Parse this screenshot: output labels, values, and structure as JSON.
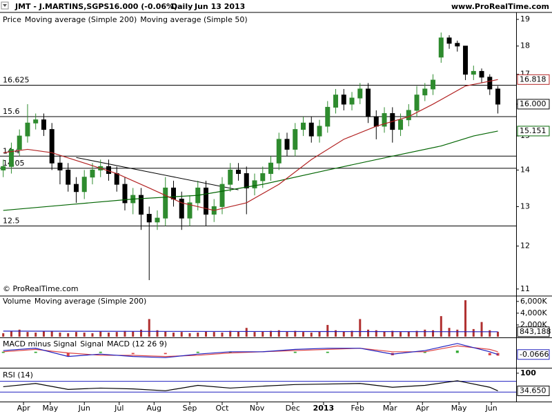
{
  "chart_data": [
    {
      "type": "candlestick",
      "title": "JMT - J.MARTINS,SGPS",
      "subtitle": "16.000 (-0.06%)",
      "period": "Daily",
      "date": "Jun 13 2013",
      "source": "www.ProRealTime.com",
      "copyright": "© ProRealTime.com",
      "legend_label": "Price",
      "log_scale": true,
      "xlim": [
        -0.4,
        63.25
      ],
      "ylim": [
        10.86,
        19.27
      ],
      "yticks": [
        11,
        12,
        13,
        14,
        15,
        16,
        17,
        18,
        19
      ],
      "up_color": "#2e8b2e",
      "down_color": "#000000",
      "open": [
        14.0,
        14.1,
        14.6,
        15.0,
        15.4,
        15.5,
        15.2,
        14.2,
        14.0,
        13.6,
        13.4,
        13.8,
        14.0,
        14.1,
        13.9,
        13.6,
        13.1,
        13.3,
        12.8,
        12.6,
        12.7,
        13.5,
        13.2,
        12.7,
        13.1,
        13.5,
        12.8,
        13.0,
        13.6,
        14.0,
        13.9,
        13.5,
        13.7,
        13.9,
        14.2,
        14.9,
        14.6,
        15.2,
        15.4,
        15.0,
        15.3,
        15.9,
        16.3,
        16.0,
        16.2,
        16.5,
        15.6,
        15.3,
        15.7,
        15.2,
        15.5,
        15.8,
        16.3,
        16.5,
        17.6,
        18.3,
        18.1,
        18.0,
        17.0,
        17.1,
        16.9,
        16.5
      ],
      "high": [
        14.3,
        14.8,
        15.2,
        16.0,
        15.7,
        15.7,
        15.4,
        14.4,
        14.2,
        13.8,
        14.0,
        14.2,
        14.3,
        14.3,
        14.1,
        13.8,
        13.5,
        13.5,
        13.0,
        12.9,
        13.8,
        13.7,
        13.4,
        13.3,
        13.7,
        13.7,
        13.2,
        13.8,
        14.2,
        14.2,
        14.1,
        13.9,
        14.1,
        14.4,
        15.1,
        15.1,
        15.4,
        15.6,
        15.6,
        15.5,
        16.1,
        16.5,
        16.5,
        16.4,
        16.7,
        16.7,
        15.8,
        15.9,
        15.9,
        15.7,
        16.0,
        16.6,
        16.7,
        17.0,
        18.5,
        18.4,
        18.2,
        18.0,
        17.3,
        17.2,
        17.0,
        16.6
      ],
      "low": [
        13.8,
        13.9,
        14.4,
        14.8,
        15.2,
        15.0,
        14.0,
        13.6,
        13.4,
        13.1,
        13.2,
        13.6,
        13.8,
        13.7,
        13.4,
        12.9,
        12.8,
        12.4,
        11.2,
        12.4,
        12.5,
        13.0,
        12.4,
        12.5,
        12.9,
        12.5,
        12.6,
        12.8,
        13.4,
        13.7,
        12.8,
        13.3,
        13.5,
        13.7,
        14.0,
        14.4,
        14.4,
        15.0,
        14.8,
        14.8,
        15.1,
        15.7,
        15.8,
        15.8,
        16.0,
        15.4,
        14.9,
        15.1,
        14.8,
        15.0,
        15.3,
        15.6,
        16.1,
        16.3,
        17.4,
        17.9,
        17.8,
        16.8,
        16.8,
        16.7,
        16.3,
        15.7
      ],
      "close": [
        14.1,
        14.6,
        15.0,
        15.4,
        15.5,
        15.2,
        14.2,
        14.0,
        13.6,
        13.4,
        13.8,
        14.0,
        14.1,
        13.9,
        13.6,
        13.1,
        13.3,
        12.8,
        12.6,
        12.7,
        13.5,
        13.2,
        12.7,
        13.1,
        13.5,
        12.8,
        13.0,
        13.6,
        14.0,
        13.9,
        13.5,
        13.7,
        13.9,
        14.2,
        14.9,
        14.6,
        15.2,
        15.4,
        15.0,
        15.3,
        15.9,
        16.3,
        16.0,
        16.2,
        16.5,
        15.6,
        15.3,
        15.7,
        15.2,
        15.5,
        15.8,
        16.3,
        16.5,
        16.8,
        18.3,
        18.1,
        18.0,
        17.0,
        17.1,
        16.9,
        16.5,
        16.0
      ],
      "last_price": {
        "value": 16.0,
        "label": "16.000"
      },
      "levels": [
        16.625,
        15.6,
        14.4,
        14.05,
        12.5
      ],
      "trendline": {
        "x": [
          9,
          29
        ],
        "values": [
          14.36,
          13.45
        ]
      },
      "series": [
        {
          "name": "Moving average (Simple 200)",
          "color": "#006400",
          "x": [
            0,
            8,
            16,
            24,
            32,
            40,
            48,
            54,
            58,
            61
          ],
          "values": [
            12.9,
            13.05,
            13.2,
            13.3,
            13.6,
            14.0,
            14.4,
            14.7,
            15.0,
            15.151
          ]
        },
        {
          "name": "Moving average (Simple 50)",
          "color": "#b22222",
          "x": [
            0,
            3,
            6,
            10,
            14,
            18,
            22,
            26,
            30,
            34,
            38,
            42,
            46,
            50,
            53,
            57,
            61
          ],
          "values": [
            14.5,
            14.6,
            14.5,
            14.2,
            13.9,
            13.5,
            13.1,
            12.9,
            13.1,
            13.6,
            14.3,
            14.9,
            15.3,
            15.6,
            16.0,
            16.6,
            16.818
          ]
        }
      ]
    },
    {
      "type": "volume",
      "title": "Volume",
      "xlim": [
        -0.4,
        63.25
      ],
      "ylim": [
        0,
        6800
      ],
      "yticks": [
        {
          "value": 6000,
          "label": "6,000K"
        },
        {
          "value": 4000,
          "label": "4,000K"
        },
        {
          "value": 2000,
          "label": "2,000K"
        }
      ],
      "last_value": {
        "value": 843.188,
        "label": "843,188"
      },
      "series": [
        {
          "name": "Volume",
          "color": "#b03030",
          "values": [
            600,
            900,
            1200,
            800,
            700,
            900,
            1000,
            700,
            600,
            800,
            700,
            600,
            900,
            700,
            800,
            1000,
            900,
            1200,
            3000,
            1100,
            900,
            700,
            800,
            600,
            700,
            900,
            800,
            700,
            1000,
            900,
            1500,
            800,
            900,
            1000,
            1100,
            900,
            1000,
            800,
            700,
            900,
            2000,
            1100,
            900,
            1000,
            3000,
            1200,
            1100,
            900,
            1000,
            800,
            900,
            1000,
            1200,
            1100,
            3500,
            1500,
            1200,
            6200,
            1300,
            2500,
            1100,
            843.188
          ]
        },
        {
          "name": "Moving average (Simple 200)",
          "color": "#1f1fbf",
          "x": [
            0,
            20,
            40,
            61
          ],
          "values": [
            950,
            900,
            880,
            843.188
          ]
        }
      ]
    },
    {
      "type": "macd",
      "xlim": [
        -0.4,
        63.25
      ],
      "ylim": [
        -0.6,
        0.6
      ],
      "series": [
        {
          "name": "MACD minus Signal",
          "color": "#33aa33",
          "negative_color": "#dd4444",
          "x": [
            0,
            4,
            8,
            12,
            16,
            20,
            24,
            28,
            32,
            36,
            40,
            44,
            48,
            52,
            56,
            60,
            61
          ],
          "values": [
            0.05,
            0.05,
            -0.15,
            0.05,
            -0.05,
            -0.05,
            0.05,
            0.05,
            0,
            0.05,
            0.05,
            0,
            -0.1,
            0.05,
            0.1,
            -0.1,
            -0.1166
          ]
        },
        {
          "name": "Signal",
          "color": "#dd4444",
          "x": [
            0,
            4,
            8,
            12,
            16,
            20,
            24,
            28,
            32,
            36,
            40,
            44,
            48,
            52,
            56,
            60,
            61
          ],
          "values": [
            0.05,
            0.15,
            0.0,
            -0.1,
            -0.1,
            -0.15,
            -0.1,
            0.0,
            0.05,
            0.1,
            0.15,
            0.2,
            0.05,
            0.05,
            0.3,
            0.15,
            0.05
          ]
        },
        {
          "name": "MACD (12 26 9)",
          "color": "#1f1fbf",
          "x": [
            0,
            4,
            8,
            12,
            16,
            20,
            24,
            28,
            32,
            36,
            40,
            44,
            48,
            52,
            56,
            60,
            61
          ],
          "values": [
            0.1,
            0.2,
            -0.15,
            -0.05,
            -0.15,
            -0.2,
            -0.05,
            0.05,
            0.05,
            0.15,
            0.2,
            0.2,
            -0.05,
            0.1,
            0.4,
            0.05,
            -0.0666
          ]
        }
      ]
    },
    {
      "type": "rsi",
      "title": "RSI (14)",
      "xlim": [
        -0.4,
        63.25
      ],
      "ylim": [
        -5,
        115
      ],
      "yticks": [
        100
      ],
      "levels": [
        70,
        30
      ],
      "last_value": {
        "value": 34.65,
        "label": "34.650"
      },
      "xticks": [
        {
          "value": 2.5,
          "label": "Apr"
        },
        {
          "value": 5.8,
          "label": "May"
        },
        {
          "value": 10,
          "label": "Jun"
        },
        {
          "value": 14.3,
          "label": "Jul"
        },
        {
          "value": 18.6,
          "label": "Aug"
        },
        {
          "value": 23,
          "label": "Sep"
        },
        {
          "value": 27,
          "label": "Oct"
        },
        {
          "value": 31.3,
          "label": "Nov"
        },
        {
          "value": 35.7,
          "label": "Dec"
        },
        {
          "value": 39.5,
          "label": "2013"
        },
        {
          "value": 43.7,
          "label": "Feb"
        },
        {
          "value": 47.7,
          "label": "Mar"
        },
        {
          "value": 51.7,
          "label": "Apr"
        },
        {
          "value": 56.2,
          "label": "May"
        },
        {
          "value": 60.2,
          "label": "Jun"
        }
      ],
      "series": [
        {
          "name": "RSI",
          "color": "#000000",
          "x": [
            0,
            4,
            8,
            12,
            16,
            20,
            24,
            28,
            32,
            36,
            40,
            44,
            48,
            52,
            56,
            60,
            61
          ],
          "values": [
            50,
            62,
            40,
            45,
            42,
            35,
            55,
            45,
            52,
            58,
            60,
            62,
            48,
            55,
            72,
            48,
            34.65
          ]
        }
      ]
    }
  ]
}
